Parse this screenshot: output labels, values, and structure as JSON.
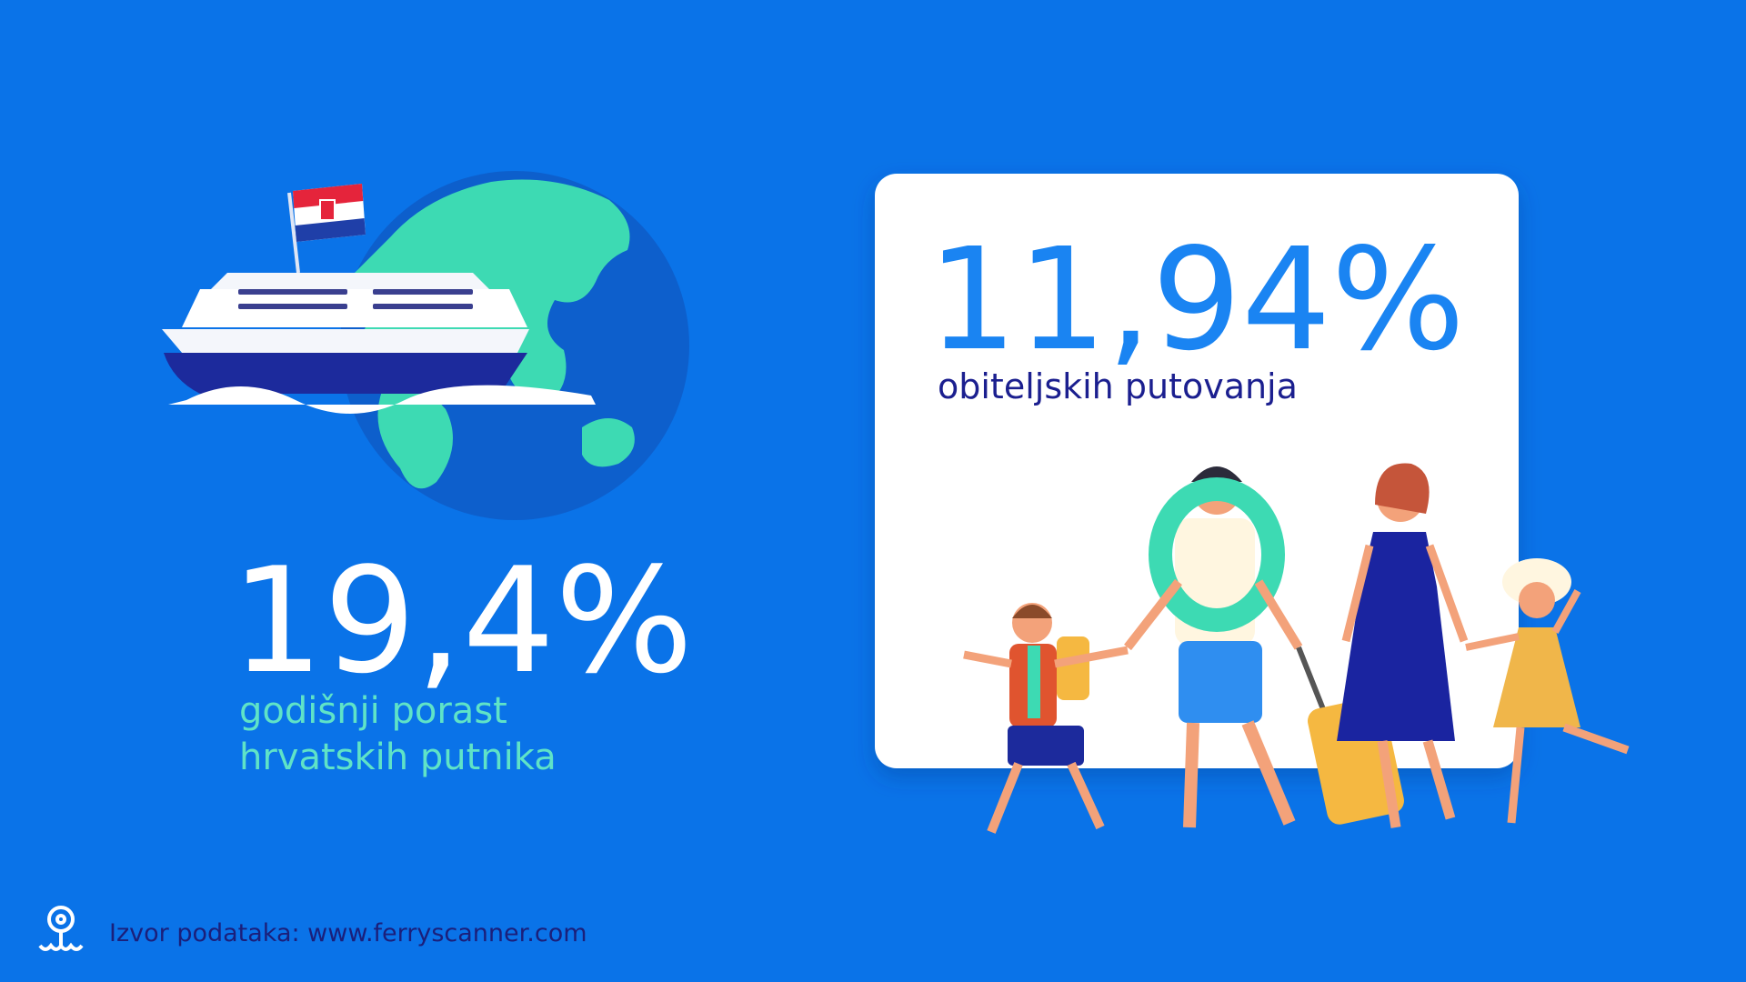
{
  "left_stat": {
    "value": "19,4%",
    "caption": [
      "godišnji porast",
      "hrvatskih putnika"
    ]
  },
  "card_stat": {
    "value": "11,94%",
    "caption": "obiteljskih putovanja"
  },
  "footer": {
    "source": "Izvor podataka: www.ferryscanner.com"
  }
}
